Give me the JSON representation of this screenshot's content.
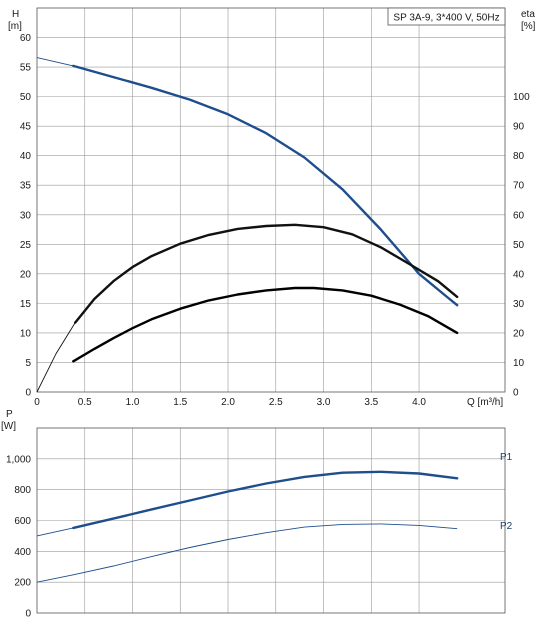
{
  "chart_data": [
    {
      "type": "line",
      "title": "SP 3A-9, 3*400 V, 50Hz",
      "xlabel": "Q [m³/h]",
      "ylabel_left": "H",
      "ylabel_left_unit": "[m]",
      "ylabel_right": "eta",
      "ylabel_right_unit": "[%]",
      "xlim": [
        0,
        4.9
      ],
      "ylim_left": [
        0,
        65
      ],
      "ylim_right": [
        0,
        130
      ],
      "grid": true,
      "x_ticks": [
        "0",
        "0.5",
        "1.0",
        "1.5",
        "2.0",
        "2.5",
        "3.0",
        "3.5",
        "4.0"
      ],
      "y_ticks_left": [
        "0",
        "5",
        "10",
        "15",
        "20",
        "25",
        "30",
        "35",
        "40",
        "45",
        "50",
        "55",
        "60"
      ],
      "y_ticks_right": [
        "0",
        "10",
        "20",
        "30",
        "40",
        "50",
        "60",
        "70",
        "80",
        "90",
        "100"
      ],
      "series": [
        {
          "axis": "left",
          "color": "#1f4e8c",
          "x": [
            0,
            0.38,
            0.8,
            1.2,
            1.6,
            2.0,
            2.4,
            2.8,
            3.2,
            3.6,
            4.0,
            4.3,
            4.4
          ],
          "y": [
            56.6,
            55.2,
            53.3,
            51.5,
            49.5,
            47.0,
            43.8,
            39.7,
            34.3,
            27.5,
            20.0,
            16.0,
            14.7
          ],
          "bold_x": [
            0.38,
            4.4
          ]
        },
        {
          "axis": "right",
          "color": "#111111",
          "x": [
            0,
            0.2,
            0.4,
            0.6,
            0.8,
            1.0,
            1.2,
            1.5,
            1.8,
            2.1,
            2.4,
            2.7,
            3.0,
            3.3,
            3.6,
            3.9,
            4.2,
            4.4
          ],
          "y": [
            0,
            13,
            23.5,
            31.5,
            37.5,
            42.3,
            46.0,
            50.2,
            53.2,
            55.2,
            56.2,
            56.6,
            55.8,
            53.4,
            49.0,
            43.3,
            37.5,
            32.2
          ],
          "bold_x": [
            0.38,
            4.4
          ]
        },
        {
          "axis": "left",
          "color": "#000000",
          "x": [
            0.38,
            0.6,
            0.8,
            1.0,
            1.2,
            1.5,
            1.8,
            2.1,
            2.4,
            2.7,
            2.9,
            3.2,
            3.5,
            3.8,
            4.1,
            4.4
          ],
          "y": [
            5.2,
            7.3,
            9.1,
            10.8,
            12.3,
            14.1,
            15.5,
            16.5,
            17.2,
            17.6,
            17.6,
            17.2,
            16.3,
            14.8,
            12.8,
            10.0
          ],
          "bold_x": [
            0.38,
            4.4
          ]
        }
      ]
    },
    {
      "type": "line",
      "ylabel": "P",
      "ylabel_unit": "[W]",
      "xlim": [
        0,
        4.9
      ],
      "ylim": [
        0,
        1200
      ],
      "grid": true,
      "y_ticks": [
        "0",
        "200",
        "400",
        "600",
        "800",
        "1,000"
      ],
      "series": [
        {
          "name": "P1",
          "color": "#1f4e8c",
          "x": [
            0,
            0.38,
            0.8,
            1.2,
            1.6,
            2.0,
            2.4,
            2.8,
            3.2,
            3.6,
            4.0,
            4.4
          ],
          "y": [
            500,
            552,
            612,
            672,
            730,
            788,
            840,
            883,
            910,
            916,
            905,
            874
          ],
          "bold_x": [
            0.38,
            4.4
          ]
        },
        {
          "name": "P2",
          "color": "#1f4e8c",
          "x": [
            0,
            0.38,
            0.8,
            1.2,
            1.6,
            2.0,
            2.4,
            2.8,
            3.2,
            3.6,
            4.0,
            4.4
          ],
          "y": [
            200,
            248,
            305,
            366,
            425,
            477,
            521,
            557,
            575,
            578,
            568,
            547
          ],
          "bold_x": [
            99,
            99
          ]
        }
      ]
    }
  ]
}
